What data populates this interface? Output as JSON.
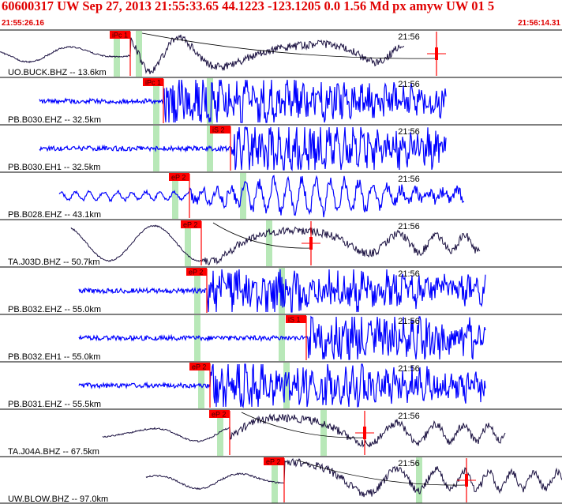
{
  "header": {
    "title": "60600317 UW Sep 27, 2013 21:55:33.65   44.1223 -123.1205  0.0 1.56 Md px amyw UW 01   5",
    "start_time": "21:55:26.16",
    "end_time": "21:56:14.31"
  },
  "chart_data": {
    "type": "line",
    "title": "60600317 UW Sep 27, 2013 21:55:33.65   44.1223 -123.1205  0.0 1.56 Md px amyw UW 01   5",
    "x_range": [
      "21:55:26.16",
      "21:56:14.31"
    ],
    "x_tick_label": "21:56",
    "channels": [
      {
        "label": "UO.BUCK.BHZ -- 13.6km",
        "color": "#1a1040",
        "pick": "iPc 1",
        "kind": "slow",
        "coda": true
      },
      {
        "label": "PB.B030.EHZ -- 32.5km",
        "color": "#0000ff",
        "pick": "iPc 1",
        "kind": "fast",
        "coda": false
      },
      {
        "label": "PB.B030.EH1 -- 32.5km",
        "color": "#0000ff",
        "pick": "iS 2",
        "kind": "fast",
        "coda": false
      },
      {
        "label": "PB.B028.EHZ -- 43.1km",
        "color": "#0000ff",
        "pick": "eP 2",
        "kind": "mid",
        "coda": false
      },
      {
        "label": "TA.J03D.BHZ -- 50.7km",
        "color": "#1a1040",
        "pick": "eP 2",
        "kind": "slow",
        "coda": true
      },
      {
        "label": "PB.B032.EHZ -- 55.0km",
        "color": "#0000ff",
        "pick": "eP 2",
        "kind": "fast",
        "coda": false
      },
      {
        "label": "PB.B032.EH1 -- 55.0km",
        "color": "#0000ff",
        "pick": "iS 1",
        "kind": "fast",
        "coda": false
      },
      {
        "label": "PB.B031.EHZ -- 55.5km",
        "color": "#0000ff",
        "pick": "eP 2",
        "kind": "fast",
        "coda": false
      },
      {
        "label": "TA.J04A.BHZ -- 67.5km",
        "color": "#1a1040",
        "pick": "eP 2",
        "kind": "slow",
        "coda": true
      },
      {
        "label": "UW.BLOW.BHZ -- 97.0km",
        "color": "#1a1040",
        "pick": "eP 2",
        "kind": "slow",
        "coda": true
      }
    ],
    "colors": {
      "pick_flag": "#ff0000",
      "phase_window": "#b8e8b8",
      "title": "#e00000",
      "separator": "#000000"
    }
  }
}
